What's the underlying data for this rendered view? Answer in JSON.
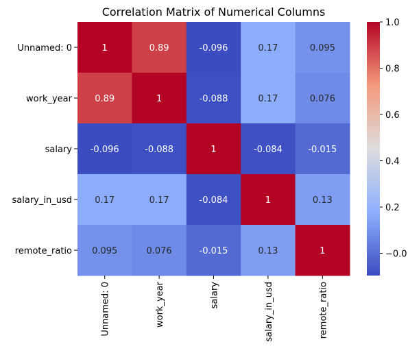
{
  "chart_data": {
    "type": "heatmap",
    "title": "Correlation Matrix of Numerical Columns",
    "row_labels": [
      "Unnamed: 0",
      "work_year",
      "salary",
      "salary_in_usd",
      "remote_ratio"
    ],
    "col_labels": [
      "Unnamed: 0",
      "work_year",
      "salary",
      "salary_in_usd",
      "remote_ratio"
    ],
    "values": [
      [
        1,
        0.89,
        -0.096,
        0.17,
        0.095
      ],
      [
        0.89,
        1,
        -0.088,
        0.17,
        0.076
      ],
      [
        -0.096,
        -0.088,
        1,
        -0.084,
        -0.015
      ],
      [
        0.17,
        0.17,
        -0.084,
        1,
        0.13
      ],
      [
        0.095,
        0.076,
        -0.015,
        0.13,
        1
      ]
    ],
    "annotations": [
      [
        "1",
        "0.89",
        "-0.096",
        "0.17",
        "0.095"
      ],
      [
        "0.89",
        "1",
        "-0.088",
        "0.17",
        "0.076"
      ],
      [
        "-0.096",
        "-0.088",
        "1",
        "-0.084",
        "-0.015"
      ],
      [
        "0.17",
        "0.17",
        "-0.084",
        "1",
        "0.13"
      ],
      [
        "0.095",
        "0.076",
        "-0.015",
        "0.13",
        "1"
      ]
    ],
    "colormap": "coolwarm",
    "colorbar": {
      "vmin": -0.096,
      "vmax": 1,
      "ticks": [
        -0.0,
        0.2,
        0.4,
        0.6,
        0.8,
        1.0
      ],
      "tick_labels": [
        "−0.0",
        "0.2",
        "0.4",
        "0.6",
        "0.8",
        "1.0"
      ]
    }
  }
}
